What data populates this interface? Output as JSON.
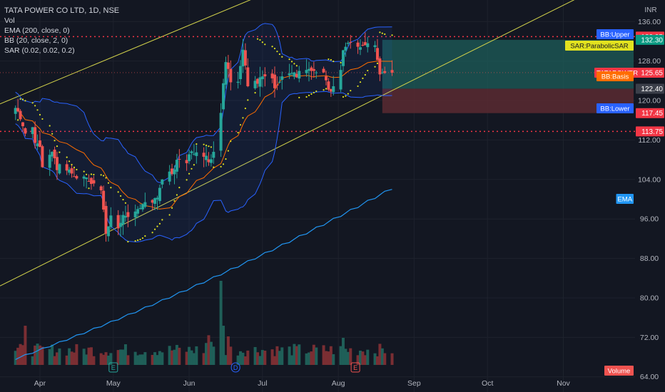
{
  "header": {
    "title": "TATA POWER CO LTD, 1D, NSE",
    "indicators": [
      "Vol",
      "EMA (200, close, 0)",
      "BB (20, close, 2, 0)",
      "SAR (0.02, 0.02, 0.2)"
    ],
    "currency": "INR"
  },
  "colors": {
    "background": "#131722",
    "up": "#26a69a",
    "down": "#ef5350",
    "bb": "#2962ff",
    "bb_basis": "#ff6d00",
    "ema": "#2196f3",
    "sar": "#e2e21f",
    "channel": "#d4d44b",
    "level": "#f23645",
    "profit": "#1e5e59",
    "loss": "#5a2a31"
  },
  "chart_data": {
    "type": "candlestick",
    "title": "TATA POWER CO LTD, 1D, NSE",
    "currency": "INR",
    "y_ticks": [
      136,
      128,
      120,
      112,
      104,
      96,
      88,
      80,
      72,
      64
    ],
    "y_range": [
      61.5,
      139.8
    ],
    "x_ticks": [
      "Apr",
      "May",
      "Jun",
      "Jul",
      "Aug",
      "Sep",
      "Oct",
      "Nov"
    ],
    "x_start_date": "2024-03-18",
    "x_end_date": "2024-11-28",
    "last_date": "2024-08-23",
    "closes": [
      118.5,
      117.8,
      116.2,
      114.8,
      113.3,
      114.6,
      111.4,
      111.3,
      110.6,
      106.5,
      109.0,
      109.6,
      108.3,
      105.9,
      107.1,
      105.8,
      106.0,
      105.2,
      104.6,
      104.2,
      104.6,
      104.4,
      103.6,
      103.1,
      103.2,
      101.8,
      97.9,
      93.0,
      94.5,
      96.7,
      94.1,
      95.2,
      96.8,
      96.6,
      96.4,
      97.5,
      98.0,
      98.2,
      99.0,
      99.4,
      99.3,
      100.2,
      100.3,
      102.3,
      104.0,
      105.6,
      105.1,
      106.0,
      108.0,
      108.1,
      107.3,
      109.1,
      109.7,
      109.2,
      109.5,
      108.6,
      108.8,
      107.5,
      108.1,
      109.6,
      117.5,
      123.5,
      127.8,
      126.4,
      123.7,
      123.8,
      127.0,
      130.3,
      127.1,
      122.9,
      124.0,
      123.4,
      124.7,
      124.9,
      124.9,
      124.5,
      122.5,
      123.1,
      123.8,
      124.9,
      125.5,
      125.6,
      125.7,
      124.7,
      126.0,
      126.2,
      126.4,
      126.0,
      126.0,
      125.7,
      125.7,
      124.1,
      122.2,
      121.8,
      122.9,
      126.2,
      130.2,
      130.9,
      131.7,
      131.8,
      130.9,
      130.8,
      131.2,
      131.2,
      131.6,
      131.2,
      128.2,
      125.3,
      125.7,
      125.6,
      125.65
    ],
    "volume_peaks": [
      {
        "date": "2024-06-10",
        "note": "spike"
      }
    ],
    "series": [
      {
        "name": "EMA (200, close, 0)",
        "label": "EMA",
        "start": 67.5,
        "end": 102.0
      },
      {
        "name": "BB (20, close, 2, 0)",
        "labels": [
          "BB:Upper",
          "BB:Basis",
          "BB:Lower"
        ]
      },
      {
        "name": "SAR (0.02, 0.02, 0.2)",
        "label": "SAR:ParabolicSAR"
      }
    ],
    "price_labels": [
      {
        "text": "132.95",
        "value": 132.95,
        "kind": "level"
      },
      {
        "text": "132.30",
        "value": 132.3,
        "kind": "profit"
      },
      {
        "text": "125.65",
        "value": 125.65,
        "kind": "last",
        "name": "TATAPOWER"
      },
      {
        "text": "122.40",
        "value": 122.4,
        "kind": "entry"
      },
      {
        "text": "117.45",
        "value": 117.45,
        "kind": "stop"
      },
      {
        "text": "113.75",
        "value": 113.75,
        "kind": "level"
      }
    ],
    "levels": [
      132.95,
      113.75
    ],
    "position": {
      "entry": 122.4,
      "target": 132.3,
      "stop": 117.45,
      "start_date": "2024-08-19",
      "end_date": "2024-08-31"
    },
    "channel": [
      {
        "from_date": "2024-03-18",
        "from_value": 119.8,
        "to_date": "2024-08-31",
        "to_value": 154.0
      },
      {
        "from_date": "2024-03-18",
        "from_value": 83.0,
        "to_date": "2024-08-31",
        "to_value": 124.0
      }
    ],
    "volume_label": "Volume",
    "marks": [
      "E",
      "D",
      "E"
    ]
  }
}
